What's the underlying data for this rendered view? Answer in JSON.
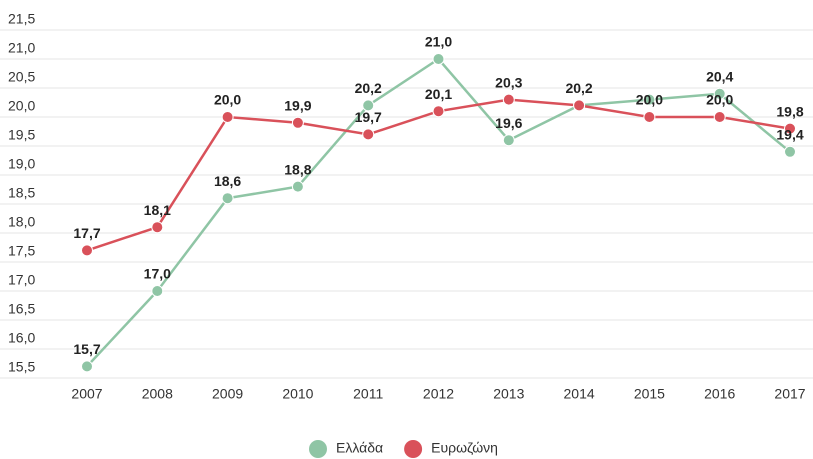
{
  "chart_data": {
    "type": "line",
    "categories": [
      "2007",
      "2008",
      "2009",
      "2010",
      "2011",
      "2012",
      "2013",
      "2014",
      "2015",
      "2016",
      "2017"
    ],
    "series": [
      {
        "name": "Ελλάδα",
        "color": "#8fc5a5",
        "values": [
          15.7,
          17.0,
          18.6,
          18.8,
          20.2,
          21.0,
          19.6,
          20.2,
          20.3,
          20.4,
          19.4
        ],
        "value_labels": [
          "15,7",
          "17,0",
          "18,6",
          "18,8",
          "20,2",
          "21,0",
          "19,6",
          null,
          null,
          "20,4",
          "19,4"
        ]
      },
      {
        "name": "Ευρωζώνη",
        "color": "#d9515a",
        "values": [
          17.7,
          18.1,
          20.0,
          19.9,
          19.7,
          20.1,
          20.3,
          20.2,
          20.0,
          20.0,
          19.8
        ],
        "value_labels": [
          "17,7",
          "18,1",
          "20,0",
          "19,9",
          "19,7",
          "20,1",
          "20,3",
          "20,2",
          "20,0",
          "20,0",
          "19,8"
        ]
      }
    ],
    "ylim": [
      15.5,
      21.5
    ],
    "yticks": [
      {
        "value": 15.5,
        "label": "15,5"
      },
      {
        "value": 16.0,
        "label": "16,0"
      },
      {
        "value": 16.5,
        "label": "16,5"
      },
      {
        "value": 17.0,
        "label": "17,0"
      },
      {
        "value": 17.5,
        "label": "17,5"
      },
      {
        "value": 18.0,
        "label": "18,0"
      },
      {
        "value": 18.5,
        "label": "18,5"
      },
      {
        "value": 19.0,
        "label": "19,0"
      },
      {
        "value": 19.5,
        "label": "19,5"
      },
      {
        "value": 20.0,
        "label": "20,0"
      },
      {
        "value": 20.5,
        "label": "20,5"
      },
      {
        "value": 21.0,
        "label": "21,0"
      },
      {
        "value": 21.5,
        "label": "21,5"
      }
    ],
    "grid": true,
    "legend": "bottom"
  }
}
